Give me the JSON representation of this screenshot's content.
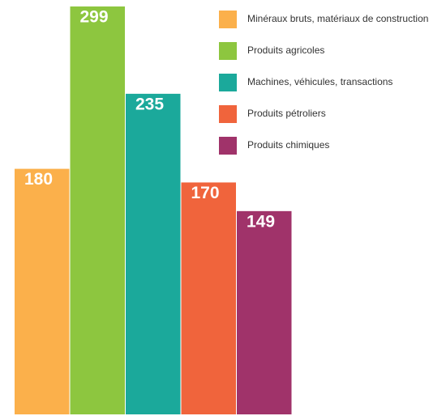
{
  "chart_data": {
    "type": "bar",
    "categories": [
      "Minéraux bruts, matériaux de construction",
      "Produits agricoles",
      "Machines, véhicules, transactions",
      "Produits pétroliers",
      "Produits chimiques"
    ],
    "values": [
      180,
      299,
      235,
      170,
      149
    ],
    "colors": [
      "#fbb04b",
      "#8dc63f",
      "#1ba99b",
      "#f0643c",
      "#a0336a"
    ],
    "legend": "top-right"
  }
}
